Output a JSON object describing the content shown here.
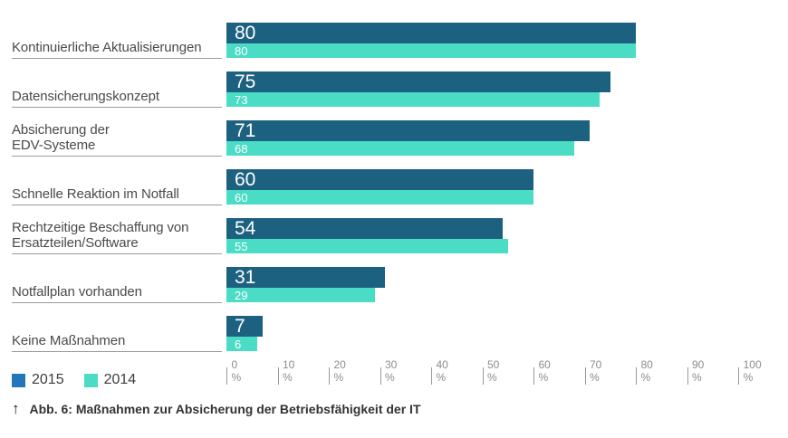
{
  "chart_data": {
    "type": "bar",
    "orientation": "horizontal",
    "title": "",
    "categories": [
      "Kontinuierliche Aktualisierungen",
      "Datensicherungskonzept",
      "Absicherung der\nEDV-Systeme",
      "Schnelle Reaktion im Notfall",
      "Rechtzeitige Beschaffung von\nErsatzteilen/Software",
      "Notfallplan vorhanden",
      "Keine Maßnahmen"
    ],
    "series": [
      {
        "name": "2015",
        "color": "#1d6181",
        "values": [
          80,
          75,
          71,
          60,
          54,
          31,
          7
        ]
      },
      {
        "name": "2014",
        "color": "#4bdcc6",
        "values": [
          80,
          73,
          68,
          60,
          55,
          29,
          6
        ]
      }
    ],
    "value_labels_shown": true,
    "xlim": [
      0,
      100
    ],
    "x_tick_labels": [
      "0 %",
      "10 %",
      "20 %",
      "30 %",
      "40 %",
      "50 %",
      "60 %",
      "70 %",
      "80 %",
      "90 %",
      "100 %"
    ],
    "grid": false,
    "legend_position": "bottom-left"
  },
  "legend": {
    "items": [
      {
        "label": "2015",
        "color": "#2177b8"
      },
      {
        "label": "2014",
        "color": "#4bdcc6"
      }
    ]
  },
  "caption": {
    "arrow_icon": "↑",
    "text": "Abb. 6: Maßnahmen zur Absicherung der Betriebsfähigkeit der IT"
  },
  "colors": {
    "bar_2015": "#1d6181",
    "bar_2014": "#4bdcc6",
    "label_text": "#4a4a4a",
    "underline": "#9b9b9b",
    "axis_text": "#8c8c8c",
    "value_text": "#ffffff",
    "caption_text": "#333333"
  }
}
